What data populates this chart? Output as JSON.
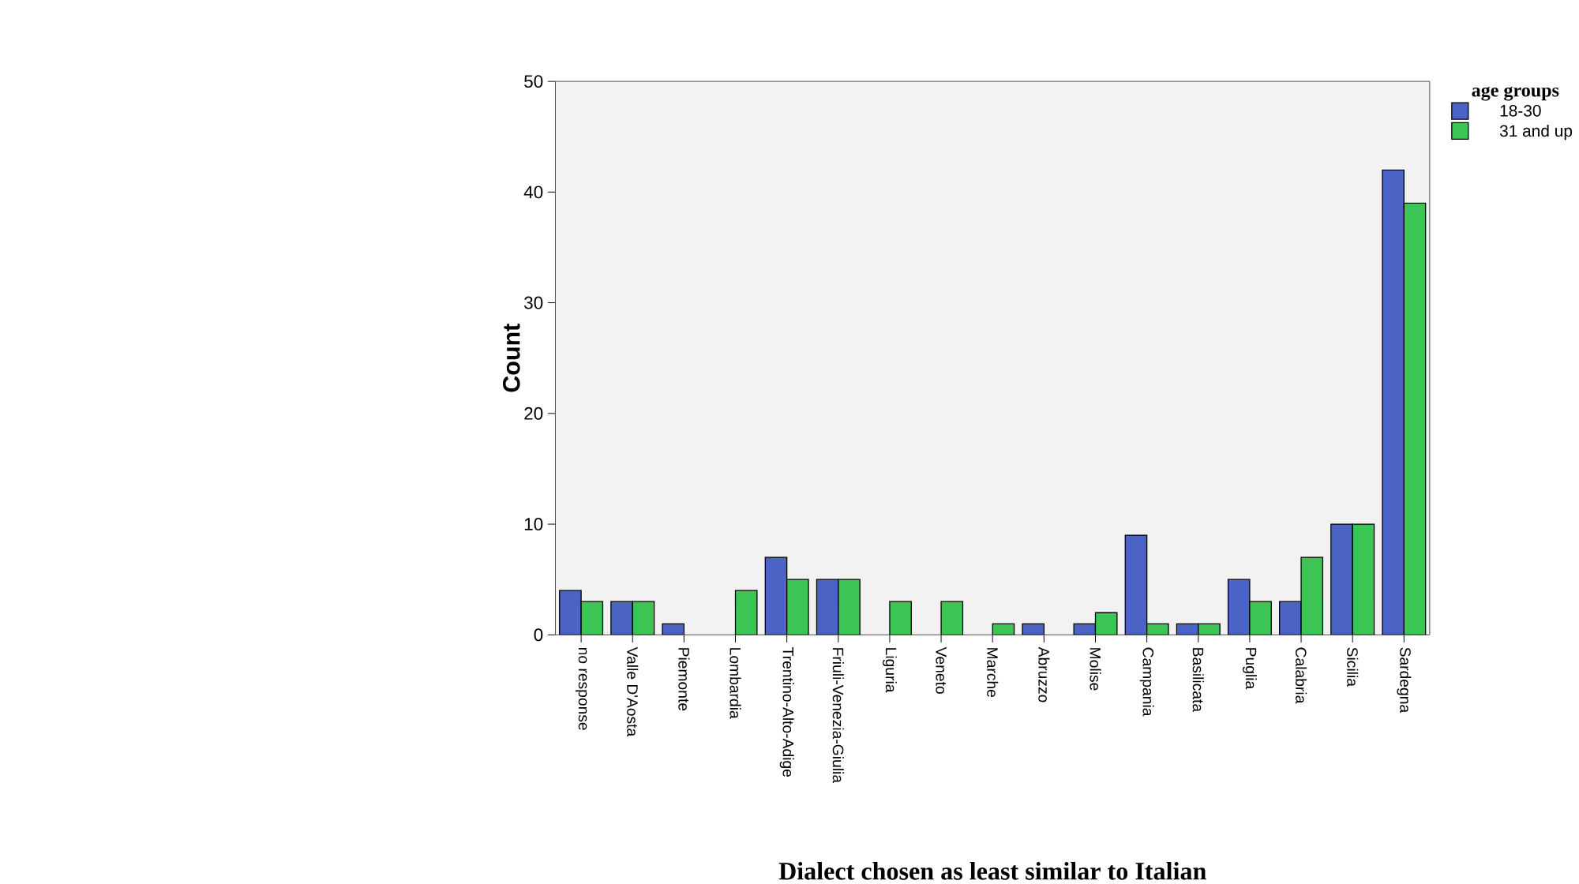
{
  "chart_data": {
    "type": "bar",
    "xlabel": "Dialect chosen as least similar to Italian",
    "ylabel": "Count",
    "legend_title": "age groups",
    "categories": [
      "no response",
      "Valle D'Aosta",
      "Piemonte",
      "Lombardia",
      "Trentino-Alto-Adige",
      "Friuli-Venezia-Giulia",
      "Liguria",
      "Veneto",
      "Marche",
      "Abruzzo",
      "Molise",
      "Campania",
      "Basilicata",
      "Puglia",
      "Calabria",
      "Sicilia",
      "Sardegna"
    ],
    "series": [
      {
        "name": "18-30",
        "color": "#4a63c4",
        "values": [
          4,
          3,
          1,
          0,
          7,
          5,
          0,
          0,
          0,
          1,
          1,
          9,
          1,
          5,
          3,
          10,
          42
        ]
      },
      {
        "name": "31 and up",
        "color": "#3cc455",
        "values": [
          3,
          3,
          0,
          4,
          5,
          5,
          3,
          3,
          1,
          0,
          2,
          1,
          1,
          3,
          7,
          10,
          39
        ]
      }
    ],
    "ylim": [
      0,
      50
    ],
    "yticks": [
      0,
      10,
      20,
      30,
      40,
      50
    ],
    "grid": false,
    "legend": "top right"
  }
}
